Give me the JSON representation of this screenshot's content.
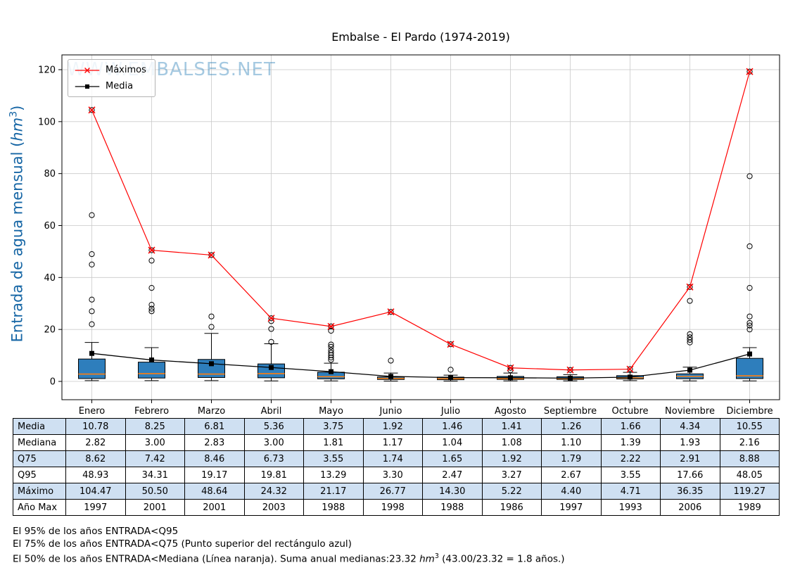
{
  "title": "Embalse - El Pardo (1974-2019)",
  "watermark": "WWW.EMBALSES.NET",
  "ylabel": {
    "main": "Entrada de agua mensual (",
    "unit": "hm",
    "sup": "3",
    "close": ")",
    "color": "#1666a5"
  },
  "legend": {
    "items": [
      {
        "label": "Máximos"
      },
      {
        "label": "Media"
      }
    ]
  },
  "chart_data": {
    "type": "boxplot",
    "title": "Embalse - El Pardo (1974-2019)",
    "ylabel": "Entrada de agua mensual (hm³)",
    "categories": [
      "Enero",
      "Febrero",
      "Marzo",
      "Abril",
      "Mayo",
      "Junio",
      "Julio",
      "Agosto",
      "Septiembre",
      "Octubre",
      "Noviembre",
      "Diciembre"
    ],
    "ylim": [
      0,
      120
    ],
    "yticks": [
      0,
      20,
      40,
      60,
      80,
      100,
      120
    ],
    "grid": true,
    "legend_position": "upper-left",
    "colors": {
      "box_fill": "#2e7ebc",
      "box_edge": "#000000",
      "median_line": "#ff7f0e",
      "maximos": "#ff0000",
      "media": "#000000",
      "grid": "#c9c9c9",
      "watermark": "rgba(31,119,180,0.40)",
      "table_alt_row": "#cfe0f2"
    },
    "series": [
      {
        "name": "Máximos",
        "values": [
          104.47,
          50.5,
          48.64,
          24.32,
          21.17,
          26.77,
          14.3,
          5.22,
          4.4,
          4.71,
          36.35,
          119.27
        ]
      },
      {
        "name": "Media",
        "values": [
          10.78,
          8.25,
          6.81,
          5.36,
          3.75,
          1.92,
          1.46,
          1.41,
          1.26,
          1.66,
          4.34,
          10.55
        ]
      },
      {
        "name": "Mediana",
        "values": [
          2.82,
          3.0,
          2.83,
          3.0,
          1.81,
          1.17,
          1.04,
          1.08,
          1.1,
          1.39,
          1.93,
          2.16
        ]
      },
      {
        "name": "Q75",
        "values": [
          8.62,
          7.42,
          8.46,
          6.73,
          3.55,
          1.74,
          1.65,
          1.92,
          1.79,
          2.22,
          2.91,
          8.88
        ]
      },
      {
        "name": "Q95",
        "values": [
          48.93,
          34.31,
          19.17,
          19.81,
          13.29,
          3.3,
          2.47,
          3.27,
          2.67,
          3.55,
          17.66,
          48.05
        ]
      }
    ],
    "boxplot_est": {
      "q25": [
        1.1,
        1.3,
        1.5,
        1.4,
        1.0,
        0.75,
        0.65,
        0.75,
        0.75,
        0.95,
        1.05,
        1.1
      ],
      "whisker_high": [
        15,
        13,
        18.5,
        14.5,
        7,
        3.2,
        2.4,
        3.2,
        2.6,
        3.5,
        5.5,
        13
      ],
      "whisker_low": [
        0.3,
        0.3,
        0.3,
        0.2,
        0.2,
        0.15,
        0.15,
        0.2,
        0.2,
        0.3,
        0.2,
        0.2
      ],
      "outliers": [
        [
          22,
          27,
          31.5,
          45,
          49,
          64,
          104.47
        ],
        [
          27,
          28,
          29.5,
          36,
          46.5,
          50.5
        ],
        [
          21,
          25,
          48.64
        ],
        [
          15.2,
          20.2,
          23.2,
          24.32
        ],
        [
          8.3,
          9.2,
          10.1,
          11,
          12,
          13.3,
          14.2,
          19.5,
          21.17
        ],
        [
          8.0,
          26.77
        ],
        [
          4.5,
          14.3
        ],
        [
          4.3,
          5.22
        ],
        [
          4.4
        ],
        [
          4.71
        ],
        [
          15,
          16,
          17,
          18.2,
          31,
          36.35
        ],
        [
          20,
          21.5,
          22.5,
          25,
          36,
          52,
          79,
          119.27
        ]
      ]
    }
  },
  "table": {
    "rows": [
      {
        "label": "Media",
        "values": [
          "10.78",
          "8.25",
          "6.81",
          "5.36",
          "3.75",
          "1.92",
          "1.46",
          "1.41",
          "1.26",
          "1.66",
          "4.34",
          "10.55"
        ]
      },
      {
        "label": "Mediana",
        "values": [
          "2.82",
          "3.00",
          "2.83",
          "3.00",
          "1.81",
          "1.17",
          "1.04",
          "1.08",
          "1.10",
          "1.39",
          "1.93",
          "2.16"
        ]
      },
      {
        "label": "Q75",
        "values": [
          "8.62",
          "7.42",
          "8.46",
          "6.73",
          "3.55",
          "1.74",
          "1.65",
          "1.92",
          "1.79",
          "2.22",
          "2.91",
          "8.88"
        ]
      },
      {
        "label": "Q95",
        "values": [
          "48.93",
          "34.31",
          "19.17",
          "19.81",
          "13.29",
          "3.30",
          "2.47",
          "3.27",
          "2.67",
          "3.55",
          "17.66",
          "48.05"
        ]
      },
      {
        "label": "Máximo",
        "values": [
          "104.47",
          "50.50",
          "48.64",
          "24.32",
          "21.17",
          "26.77",
          "14.30",
          "5.22",
          "4.40",
          "4.71",
          "36.35",
          "119.27"
        ]
      },
      {
        "label": "Año Max",
        "values": [
          "1997",
          "2001",
          "2001",
          "2003",
          "1988",
          "1998",
          "1988",
          "1986",
          "1997",
          "1993",
          "2006",
          "1989"
        ]
      }
    ]
  },
  "footnotes": {
    "line1": "El 95% de los años ENTRADA<Q95",
    "line2": "El 75% de los años ENTRADA<Q75 (Punto superior del rectángulo azul)",
    "line3_pre": "El 50% de los años ENTRADA<Mediana (Línea naranja). Suma anual medianas:23.32 ",
    "line3_unit": "hm",
    "line3_sup": "3",
    "line3_post": " (43.00/23.32 = 1.8 años.)"
  }
}
